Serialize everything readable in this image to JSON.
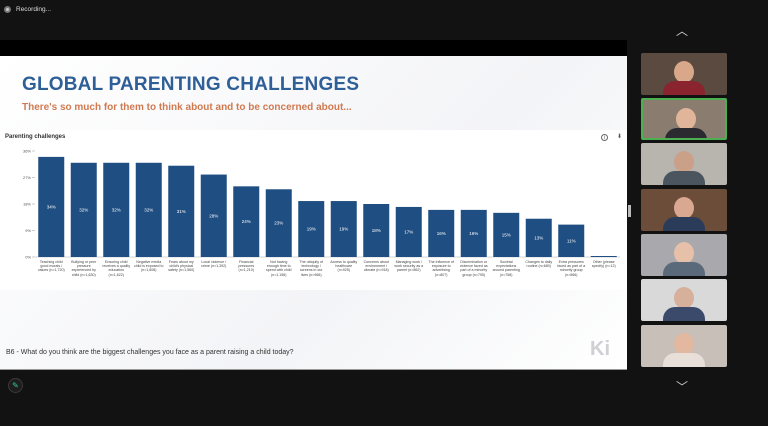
{
  "recording": {
    "label": "Recording..."
  },
  "slide": {
    "title": "GLOBAL PARENTING CHALLENGES",
    "subtitle": "There's so much for them to think about and to be concerned about...",
    "question": "B6 - What do you think are the biggest challenges you face as a parent raising a child today?",
    "logo": "Ki"
  },
  "chart_data": {
    "type": "bar",
    "title": "Parenting challenges",
    "ylim": [
      0,
      36
    ],
    "yticks": [
      "0%",
      "9%",
      "18%",
      "27%",
      "36%"
    ],
    "bar_color": "#1f4e82",
    "categories": [
      "Teaching child good morals / values (n=1,720)",
      "Bullying or peer pressure experienced by child (n=1,630)",
      "Ensuring child receives a quality education (n=1,622)",
      "Negative media child is exposed to (n=1,608)",
      "Fears about my child's physical safety (n=1,560)",
      "Local violence / crime (n=1,392)",
      "Financial pressures (n=1,210)",
      "Not having enough time to spend with child (n=1,156)",
      "The ubiquity of technology / screens in our lives (n=968)",
      "Access to quality healthcare (n=925)",
      "Concerns about environment / climate (n=918)",
      "Managing work / work security as a parent (n=862)",
      "The influence of exposure to advertising (n=807)",
      "Discrimination or violence faced as part of a minority group (n=795)",
      "Societal expectations around parenting (n=758)",
      "Changes to daily routine (n=680)",
      "Extra pressures faced as part of a minority group (n=566)",
      "Other (please specify) (n=12)"
    ],
    "values": [
      34,
      32,
      32,
      32,
      31,
      28,
      24,
      23,
      19,
      19,
      18,
      17,
      16,
      16,
      15,
      13,
      11,
      0
    ],
    "labels": [
      "34%",
      "32%",
      "32%",
      "32%",
      "31%",
      "28%",
      "24%",
      "23%",
      "19%",
      "19%",
      "18%",
      "17%",
      "16%",
      "16%",
      "15%",
      "13%",
      "11%",
      ""
    ]
  },
  "participants": {
    "count": 7,
    "active_index": 1
  }
}
